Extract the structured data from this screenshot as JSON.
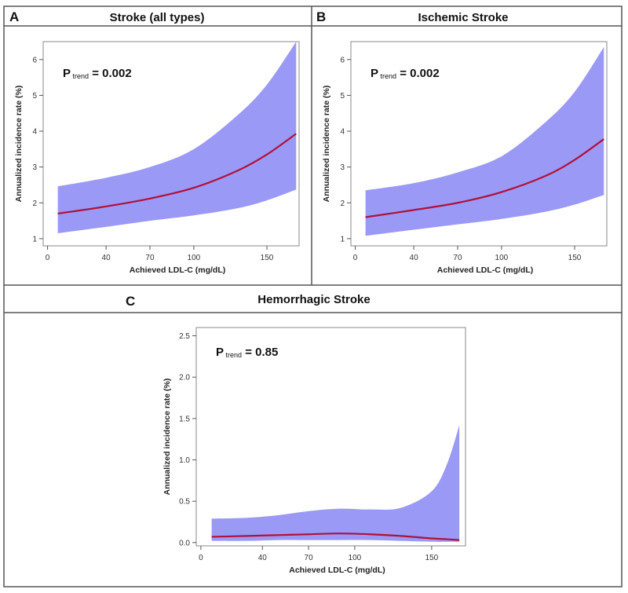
{
  "colors": {
    "band": "#9a9af6",
    "curve": "#b0103a"
  },
  "chart_data": [
    {
      "type": "area",
      "panel": "A",
      "title": "Stroke (all types)",
      "xlabel": "Achieved LDL-C (mg/dL)",
      "ylabel": "Annualized incidence rate (%)",
      "annotation": {
        "prefix": "P",
        "subscript": "trend",
        "value": "= 0.002"
      },
      "xticks": [
        0,
        40,
        70,
        100,
        150
      ],
      "yticks": [
        1,
        2,
        3,
        4,
        5,
        6
      ],
      "xlim": [
        -3,
        172
      ],
      "ylim": [
        0.8,
        6.5
      ],
      "x": [
        7,
        40,
        70,
        100,
        130,
        150,
        170
      ],
      "estimate": [
        1.7,
        1.9,
        2.12,
        2.42,
        2.9,
        3.35,
        3.93
      ],
      "ci_upper": [
        2.46,
        2.7,
        3.0,
        3.5,
        4.45,
        5.3,
        6.5
      ],
      "ci_lower": [
        1.15,
        1.33,
        1.5,
        1.65,
        1.85,
        2.07,
        2.37
      ],
      "grid": false
    },
    {
      "type": "area",
      "panel": "B",
      "title": "Ischemic Stroke",
      "xlabel": "Achieved LDL-C (mg/dL)",
      "ylabel": "Annualized incidence rate (%)",
      "annotation": {
        "prefix": "P",
        "subscript": "trend",
        "value": "= 0.002"
      },
      "xticks": [
        0,
        40,
        70,
        100,
        150
      ],
      "yticks": [
        1,
        2,
        3,
        4,
        5,
        6
      ],
      "xlim": [
        -3,
        172
      ],
      "ylim": [
        0.8,
        6.5
      ],
      "x": [
        7,
        40,
        70,
        100,
        130,
        150,
        170
      ],
      "estimate": [
        1.6,
        1.8,
        2.0,
        2.3,
        2.75,
        3.2,
        3.78
      ],
      "ci_upper": [
        2.35,
        2.55,
        2.85,
        3.3,
        4.25,
        5.1,
        6.35
      ],
      "ci_lower": [
        1.08,
        1.25,
        1.4,
        1.55,
        1.75,
        1.95,
        2.22
      ],
      "grid": false
    },
    {
      "type": "area",
      "panel": "C",
      "title": "Hemorrhagic Stroke",
      "xlabel": "Achieved LDL-C (mg/dL)",
      "ylabel": "Annualized incidence rate (%)",
      "annotation": {
        "prefix": "P",
        "subscript": "trend",
        "value": "= 0.85"
      },
      "xticks": [
        0,
        40,
        70,
        100,
        150
      ],
      "yticks": [
        0.0,
        0.5,
        1.0,
        1.5,
        2.0,
        2.5
      ],
      "ytick_labels": [
        "0.0",
        "0.5",
        "1.0",
        "1.5",
        "2.0",
        "2.5"
      ],
      "xlim": [
        -3,
        172
      ],
      "ylim": [
        -0.04,
        2.6
      ],
      "x": [
        7,
        30,
        50,
        70,
        90,
        110,
        130,
        150,
        160,
        168
      ],
      "estimate": [
        0.07,
        0.08,
        0.09,
        0.1,
        0.11,
        0.1,
        0.08,
        0.05,
        0.04,
        0.03
      ],
      "ci_upper": [
        0.29,
        0.3,
        0.33,
        0.38,
        0.41,
        0.4,
        0.42,
        0.62,
        0.95,
        1.42
      ],
      "ci_lower": [
        0.02,
        0.02,
        0.03,
        0.03,
        0.03,
        0.03,
        0.02,
        0.01,
        0.01,
        0.01
      ],
      "grid": false
    }
  ]
}
